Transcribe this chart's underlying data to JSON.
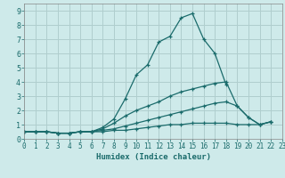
{
  "xlabel": "Humidex (Indice chaleur)",
  "background_color": "#ceeaea",
  "grid_color": "#b0cece",
  "line_color": "#1a6b6b",
  "x_values": [
    0,
    1,
    2,
    3,
    4,
    5,
    6,
    7,
    8,
    9,
    10,
    11,
    12,
    13,
    14,
    15,
    16,
    17,
    18,
    19,
    20,
    21,
    22,
    23
  ],
  "series": [
    [
      0.5,
      0.5,
      0.5,
      0.4,
      0.4,
      0.5,
      0.5,
      0.8,
      1.4,
      2.8,
      4.5,
      5.2,
      6.8,
      7.2,
      8.5,
      8.8,
      7.0,
      6.0,
      3.8,
      null,
      null,
      null,
      null,
      null
    ],
    [
      0.5,
      0.5,
      0.5,
      0.4,
      0.4,
      0.5,
      0.5,
      0.7,
      1.1,
      1.6,
      2.0,
      2.3,
      2.6,
      3.0,
      3.3,
      3.5,
      3.7,
      3.9,
      4.0,
      2.3,
      1.5,
      1.0,
      1.2,
      null
    ],
    [
      0.5,
      0.5,
      0.5,
      0.4,
      0.4,
      0.5,
      0.5,
      0.6,
      0.7,
      0.9,
      1.1,
      1.3,
      1.5,
      1.7,
      1.9,
      2.1,
      2.3,
      2.5,
      2.6,
      2.3,
      1.5,
      1.0,
      1.2,
      null
    ],
    [
      0.5,
      0.5,
      0.5,
      0.4,
      0.4,
      0.5,
      0.5,
      0.5,
      0.6,
      0.6,
      0.7,
      0.8,
      0.9,
      1.0,
      1.0,
      1.1,
      1.1,
      1.1,
      1.1,
      1.0,
      1.0,
      1.0,
      1.2,
      null
    ]
  ],
  "xlim": [
    0,
    23
  ],
  "ylim": [
    0,
    9.5
  ],
  "yticks": [
    0,
    1,
    2,
    3,
    4,
    5,
    6,
    7,
    8,
    9
  ],
  "xticks": [
    0,
    1,
    2,
    3,
    4,
    5,
    6,
    7,
    8,
    9,
    10,
    11,
    12,
    13,
    14,
    15,
    16,
    17,
    18,
    19,
    20,
    21,
    22,
    23
  ],
  "tick_fontsize": 5.5,
  "xlabel_fontsize": 6.5
}
